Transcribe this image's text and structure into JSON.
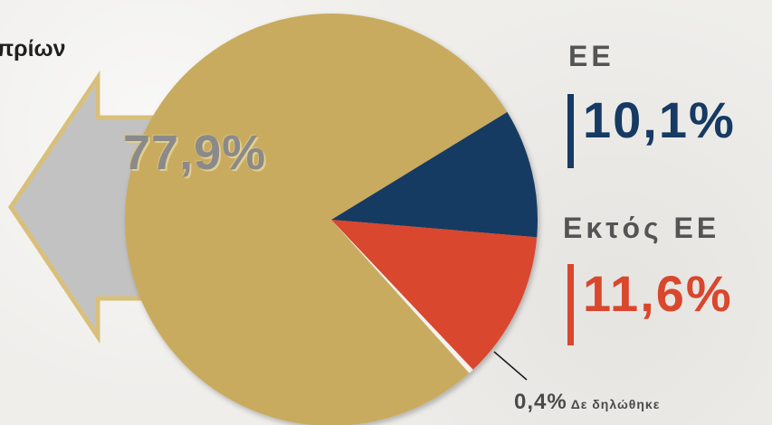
{
  "header": {
    "cut_title": "πρίων"
  },
  "chart_data": {
    "type": "pie",
    "slices": [
      {
        "label": "",
        "value": 77.9,
        "display": "77,9%",
        "color": "#c9ab5e"
      },
      {
        "label": "ΕΕ",
        "value": 10.1,
        "display": "10,1%",
        "color": "#163a63"
      },
      {
        "label": "Εκτός ΕΕ",
        "value": 11.6,
        "display": "11,6%",
        "color": "#d9472d"
      },
      {
        "label": "Δε δηλώθηκε",
        "value": 0.4,
        "display": "0,4%",
        "color": "#f4f2ee"
      }
    ]
  },
  "colors": {
    "arrow_fill": "#c2c2c2",
    "arrow_stroke": "#d9c07a",
    "eu_text": "#163a63",
    "non_eu_text": "#d9472d",
    "title_gray": "#545454"
  },
  "icons": {
    "left_arrow": "left-arrow-icon"
  }
}
